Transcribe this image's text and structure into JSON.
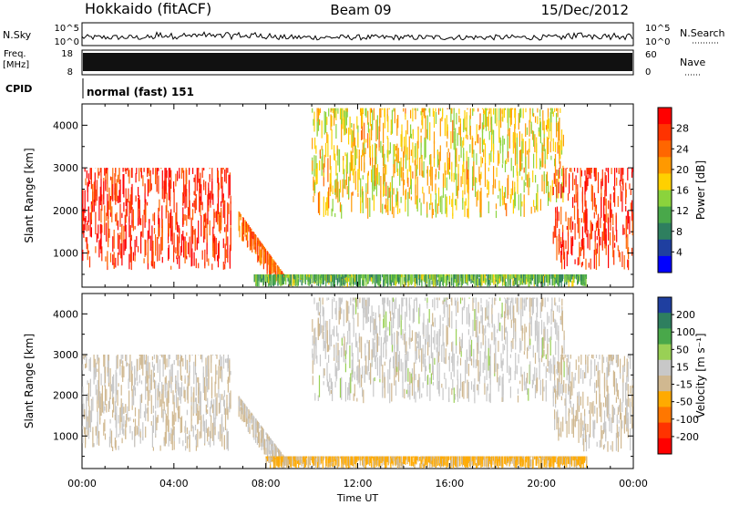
{
  "header": {
    "station": "Hokkaido (fitACF)",
    "beam": "Beam 09",
    "date": "15/Dec/2012"
  },
  "labels": {
    "nsky": "N.Sky",
    "freq": "Freq.",
    "mhz": "[MHz]",
    "cpid": "CPID",
    "nsearch": "N.Search",
    "nave": "Nave",
    "cpid_value": "normal (fast) 151",
    "sky_top": "10^5",
    "sky_bottom": "10^0",
    "freq_top": "18",
    "freq_bottom": "8",
    "nave_top": "60",
    "nave_bottom": "0"
  },
  "colors": {
    "power_scale": [
      "#0000ff",
      "#1f3fa0",
      "#2e7f5f",
      "#49a84a",
      "#8bd33c",
      "#ffd000",
      "#ff9900",
      "#ff6600",
      "#ff3300",
      "#ff0000"
    ],
    "velocity_scale": [
      "#1f3fa0",
      "#2e7f5f",
      "#49a84a",
      "#99d055",
      "#c8c8c8",
      "#d0b890",
      "#ffaa00",
      "#ff7700",
      "#ff3300",
      "#ff0000"
    ]
  },
  "chart_data": [
    {
      "type": "heatmap",
      "panel": "power",
      "xlabel": "Time UT",
      "ylabel": "Slant Range [km]",
      "ylim": [
        200,
        4500
      ],
      "xlim": [
        "00:00",
        "24:00"
      ],
      "x_ticks": [
        "00:00",
        "04:00",
        "08:00",
        "12:00",
        "16:00",
        "20:00",
        "00:00"
      ],
      "y_ticks": [
        1000,
        2000,
        3000,
        4000
      ],
      "colorbar": {
        "label": "Power [dB]",
        "ticks": [
          4,
          8,
          12,
          16,
          20,
          24,
          28
        ]
      },
      "features": [
        {
          "name": "morning band",
          "t_start": 0,
          "t_end": 6.5,
          "range_min": 600,
          "range_max": 3000,
          "level": 28
        },
        {
          "name": "descending trace",
          "t_start": 6.8,
          "t_end": 8.8,
          "range_min": 300,
          "range_max": 2000,
          "level": 24
        },
        {
          "name": "ground scatter",
          "t_start": 7.5,
          "t_end": 22,
          "range_min": 200,
          "range_max": 500,
          "level": 12
        },
        {
          "name": "afternoon band",
          "t_start": 10,
          "t_end": 21,
          "range_min": 1800,
          "range_max": 4400,
          "level": 18
        },
        {
          "name": "evening band",
          "t_start": 20.5,
          "t_end": 24,
          "range_min": 600,
          "range_max": 3000,
          "level": 28
        }
      ]
    },
    {
      "type": "heatmap",
      "panel": "velocity",
      "xlabel": "Time UT",
      "ylabel": "Slant Range [km]",
      "ylim": [
        200,
        4500
      ],
      "xlim": [
        "00:00",
        "24:00"
      ],
      "x_ticks": [
        "00:00",
        "04:00",
        "08:00",
        "12:00",
        "16:00",
        "20:00",
        "00:00"
      ],
      "y_ticks": [
        1000,
        2000,
        3000,
        4000
      ],
      "colorbar": {
        "label": "Velocity [m s⁻¹]",
        "ticks": [
          200,
          100,
          50,
          15,
          -15,
          -50,
          -100,
          -200
        ]
      },
      "features": [
        {
          "name": "morning band",
          "t_start": 0,
          "t_end": 6.5,
          "range_min": 600,
          "range_max": 3000,
          "level": 0
        },
        {
          "name": "descending trace",
          "t_start": 6.8,
          "t_end": 8.8,
          "range_min": 300,
          "range_max": 2000,
          "level": 0
        },
        {
          "name": "ground scatter",
          "t_start": 8,
          "t_end": 22,
          "range_min": 200,
          "range_max": 500,
          "level": -60
        },
        {
          "name": "afternoon band",
          "t_start": 10,
          "t_end": 21,
          "range_min": 1800,
          "range_max": 4400,
          "level": 20
        },
        {
          "name": "evening band",
          "t_start": 20.5,
          "t_end": 24,
          "range_min": 600,
          "range_max": 3000,
          "level": 0
        }
      ]
    }
  ]
}
